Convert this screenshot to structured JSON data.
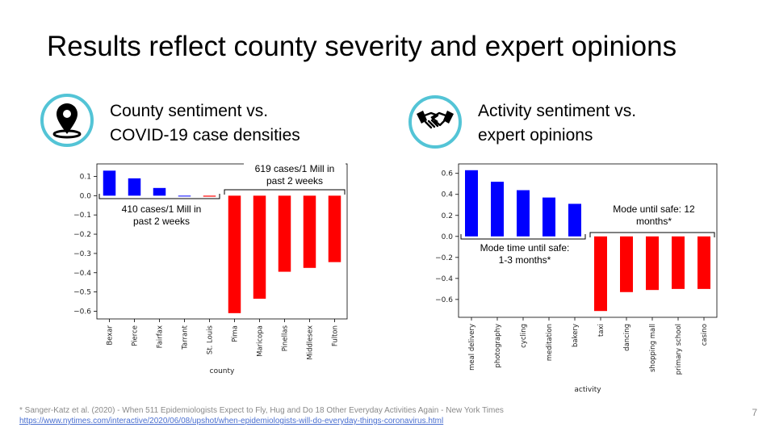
{
  "slide": {
    "title": "Results reflect county severity and expert opinions",
    "page_number": "7"
  },
  "left_section": {
    "icon": "location-pin-icon",
    "heading_line1": "County sentiment vs.",
    "heading_line2": "COVID-19 case densities",
    "annotation_low_line1": "410 cases/1 Mill in",
    "annotation_low_line2": "past 2 weeks",
    "annotation_high_line1": "619 cases/1 Mill in",
    "annotation_high_line2": "past 2 weeks"
  },
  "right_section": {
    "icon": "handshake-icon",
    "heading_line1": "Activity sentiment vs.",
    "heading_line2": "expert opinions",
    "annotation_short_line1": "Mode time until safe:",
    "annotation_short_line2": "1-3 months*",
    "annotation_long_line1": "Mode until safe: 12",
    "annotation_long_line2": "months*"
  },
  "footnote": {
    "citation": "* Sanger-Katz et al. (2020) - When 511 Epidemiologists Expect to Fly, Hug and Do 18 Other Everyday Activities Again - New York Times",
    "url": "https://www.nytimes.com/interactive/2020/06/08/upshot/when-epidemiologists-will-do-everyday-things-coronavirus.html"
  },
  "colors": {
    "positive": "#0000ff",
    "negative": "#ff0000",
    "accent": "#53c4d6"
  },
  "chart_data": [
    {
      "type": "bar",
      "xlabel": "county",
      "ylabel": "",
      "categories": [
        "Bexar",
        "Pierce",
        "Fairfax",
        "Tarrant",
        "St. Louis",
        "Pima",
        "Maricopa",
        "Pinellas",
        "Middlesex",
        "Fulton"
      ],
      "values": [
        0.13,
        0.09,
        0.04,
        0.0,
        -0.005,
        -0.61,
        -0.535,
        -0.395,
        -0.375,
        -0.345
      ],
      "ylim": [
        -0.64,
        0.165
      ],
      "yticks": [
        0.1,
        0.0,
        -0.1,
        -0.2,
        -0.3,
        -0.4,
        -0.5,
        -0.6
      ],
      "ytick_labels": [
        "0.1",
        "0.0",
        "−0.1",
        "−0.2",
        "−0.3",
        "−0.4",
        "−0.5",
        "−0.6"
      ],
      "grid": false,
      "legend": "none"
    },
    {
      "type": "bar",
      "xlabel": "activity",
      "ylabel": "",
      "categories": [
        "meal delivery",
        "photography",
        "cycling",
        "meditation",
        "bakery",
        "taxi",
        "dancing",
        "shopping mall",
        "primary school",
        "casino"
      ],
      "values": [
        0.63,
        0.52,
        0.44,
        0.37,
        0.31,
        -0.71,
        -0.53,
        -0.51,
        -0.5,
        -0.5
      ],
      "ylim": [
        -0.77,
        0.69
      ],
      "yticks": [
        0.6,
        0.4,
        0.2,
        0.0,
        -0.2,
        -0.4,
        -0.6
      ],
      "ytick_labels": [
        "0.6",
        "0.4",
        "0.2",
        "0.0",
        "−0.2",
        "−0.4",
        "−0.6"
      ],
      "grid": false,
      "legend": "none"
    }
  ]
}
